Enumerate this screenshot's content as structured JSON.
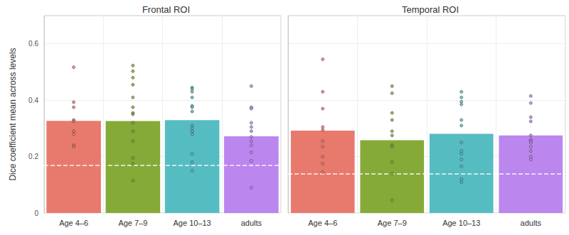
{
  "chart_data": [
    {
      "type": "bar",
      "title": "Frontal ROI",
      "ylabel": "Dice coefficient mean across levels",
      "categories": [
        "Age 4–6",
        "Age 7–9",
        "Age 10–13",
        "adults"
      ],
      "values": [
        0.327,
        0.326,
        0.329,
        0.272
      ],
      "colors": [
        "#E87A6D",
        "#86AA38",
        "#55BCC2",
        "#BB86EE"
      ],
      "points": [
        [
          0.517,
          0.393,
          0.375,
          0.33,
          0.325,
          0.29,
          0.28,
          0.24,
          0.235
        ],
        [
          0.523,
          0.503,
          0.48,
          0.455,
          0.41,
          0.375,
          0.355,
          0.35,
          0.32,
          0.29,
          0.255,
          0.195,
          0.175,
          0.115
        ],
        [
          0.445,
          0.44,
          0.43,
          0.41,
          0.38,
          0.375,
          0.36,
          0.31,
          0.3,
          0.29,
          0.28,
          0.21,
          0.18,
          0.15
        ],
        [
          0.45,
          0.375,
          0.37,
          0.32,
          0.305,
          0.29,
          0.27,
          0.255,
          0.24,
          0.215,
          0.185,
          0.09
        ]
      ],
      "chance_level": 0.17,
      "ylim": [
        0,
        0.7
      ],
      "yticks": [
        0,
        0.2,
        0.4,
        0.6
      ],
      "grid": true
    },
    {
      "type": "bar",
      "title": "Temporal ROI",
      "categories": [
        "Age 4–6",
        "Age 7–9",
        "Age 10–13",
        "adults"
      ],
      "values": [
        0.292,
        0.258,
        0.281,
        0.275
      ],
      "colors": [
        "#E87A6D",
        "#86AA38",
        "#55BCC2",
        "#BB86EE"
      ],
      "points": [
        [
          0.545,
          0.43,
          0.37,
          0.305,
          0.295,
          0.255,
          0.235,
          0.2,
          0.175,
          0.145
        ],
        [
          0.45,
          0.425,
          0.355,
          0.33,
          0.29,
          0.275,
          0.24,
          0.235,
          0.18,
          0.14,
          0.045
        ],
        [
          0.43,
          0.41,
          0.395,
          0.385,
          0.33,
          0.31,
          0.25,
          0.22,
          0.21,
          0.19,
          0.165,
          0.12,
          0.11
        ],
        [
          0.415,
          0.39,
          0.34,
          0.325,
          0.275,
          0.26,
          0.255,
          0.25,
          0.235,
          0.22,
          0.2,
          0.19
        ]
      ],
      "chance_level": 0.145,
      "ylim": [
        0,
        0.7
      ],
      "yticks": [
        0,
        0.2,
        0.4,
        0.6
      ],
      "grid": true,
      "tick_labels": "x"
    }
  ]
}
